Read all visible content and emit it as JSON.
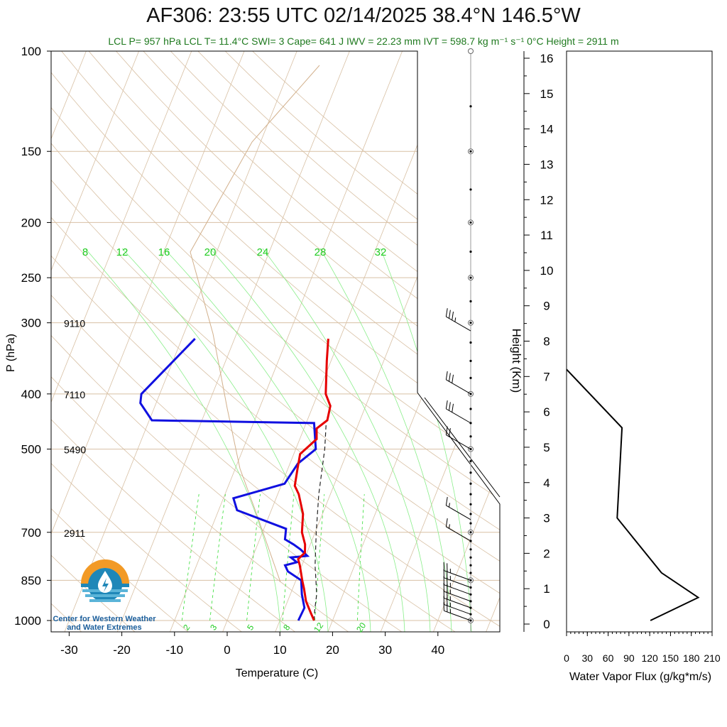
{
  "title": "AF306: 23:55 UTC 02/14/2025  38.4°N 146.5°W",
  "stats_line": "LCL P= 957 hPa  LCL T= 11.4°C  SWI= 3  Cape= 641 J  IWV = 22.23 mm  IVT = 598.7 kg m⁻¹ s⁻¹  0°C Height = 2911 m",
  "organization": {
    "line1": "Center for Western Weather",
    "line2": "and Water Extremes"
  },
  "colors": {
    "temperature": "#e60000",
    "dewpoint": "#1010e0",
    "parcel": "#222222",
    "isotherm": "#d8c0a4",
    "dry_adiabat": "#d8c0a4",
    "mixing_ratio": "#33dd33",
    "moist_adiabat": "#88ee88",
    "stats_text": "#1f7a1f"
  },
  "chart_data": [
    {
      "type": "skew-t",
      "xlabel": "Temperature (C)",
      "ylabel": "P (hPa)",
      "right_axis_label": "Height (Km)",
      "x_ticks": [
        -30,
        -20,
        -10,
        0,
        10,
        20,
        30,
        40
      ],
      "p_ticks": [
        100,
        150,
        200,
        250,
        300,
        400,
        500,
        700,
        850,
        1000
      ],
      "height_ticks": [
        0,
        1,
        2,
        3,
        4,
        5,
        6,
        7,
        8,
        9,
        10,
        11,
        12,
        13,
        14,
        15,
        16
      ],
      "height_annotations": [
        {
          "p": 300,
          "label": "9110"
        },
        {
          "p": 400,
          "label": "7110"
        },
        {
          "p": 500,
          "label": "5490"
        },
        {
          "p": 700,
          "label": "2911"
        }
      ],
      "mixing_ratio_top_labels": [
        "8",
        "12",
        "16",
        "20",
        "24",
        "28",
        "32"
      ],
      "mixing_ratio_bottom_labels": [
        "2",
        "3",
        "5",
        "8",
        "12",
        "20"
      ],
      "temperature_profile": [
        {
          "p": 1000,
          "t": 16.5
        },
        {
          "p": 970,
          "t": 15.3
        },
        {
          "p": 925,
          "t": 13.5
        },
        {
          "p": 880,
          "t": 12.2
        },
        {
          "p": 850,
          "t": 11.2
        },
        {
          "p": 800,
          "t": 9.6
        },
        {
          "p": 780,
          "t": 8.8
        },
        {
          "p": 760,
          "t": 9.6
        },
        {
          "p": 735,
          "t": 9.0
        },
        {
          "p": 700,
          "t": 7.5
        },
        {
          "p": 650,
          "t": 6.3
        },
        {
          "p": 600,
          "t": 4.0
        },
        {
          "p": 580,
          "t": 2.6
        },
        {
          "p": 540,
          "t": 1.8
        },
        {
          "p": 510,
          "t": 1.2
        },
        {
          "p": 480,
          "t": 3.2
        },
        {
          "p": 460,
          "t": 2.4
        },
        {
          "p": 445,
          "t": 3.8
        },
        {
          "p": 420,
          "t": 3.3
        },
        {
          "p": 400,
          "t": 1.5
        },
        {
          "p": 350,
          "t": -0.8
        },
        {
          "p": 320,
          "t": -2.2
        }
      ],
      "dewpoint_profile": [
        {
          "p": 1000,
          "t": 13.5
        },
        {
          "p": 950,
          "t": 13.7
        },
        {
          "p": 900,
          "t": 12.2
        },
        {
          "p": 850,
          "t": 11.0
        },
        {
          "p": 820,
          "t": 7.8
        },
        {
          "p": 800,
          "t": 6.8
        },
        {
          "p": 790,
          "t": 8.8
        },
        {
          "p": 775,
          "t": 7.3
        },
        {
          "p": 770,
          "t": 10.3
        },
        {
          "p": 750,
          "t": 8.5
        },
        {
          "p": 735,
          "t": 6.8
        },
        {
          "p": 720,
          "t": 4.8
        },
        {
          "p": 690,
          "t": 4.2
        },
        {
          "p": 640,
          "t": -6.5
        },
        {
          "p": 610,
          "t": -8.1
        },
        {
          "p": 575,
          "t": 0.5
        },
        {
          "p": 530,
          "t": 1.5
        },
        {
          "p": 500,
          "t": 3.8
        },
        {
          "p": 450,
          "t": 1.5
        },
        {
          "p": 445,
          "t": -29.5
        },
        {
          "p": 415,
          "t": -33.0
        },
        {
          "p": 400,
          "t": -33.5
        },
        {
          "p": 320,
          "t": -27.5
        }
      ],
      "parcel_profile": [
        {
          "p": 1000,
          "t": 16.5
        },
        {
          "p": 957,
          "t": 15.8
        },
        {
          "p": 900,
          "t": 15.0
        },
        {
          "p": 850,
          "t": 13.8
        },
        {
          "p": 800,
          "t": 12.5
        },
        {
          "p": 700,
          "t": 10.2
        },
        {
          "p": 600,
          "t": 7.8
        },
        {
          "p": 500,
          "t": 5.5
        },
        {
          "p": 450,
          "t": 3.8
        }
      ],
      "wind_profile": [
        {
          "p": 1000,
          "speed": 25
        },
        {
          "p": 975,
          "speed": 25
        },
        {
          "p": 950,
          "speed": 25
        },
        {
          "p": 925,
          "speed": 25
        },
        {
          "p": 900,
          "speed": 25
        },
        {
          "p": 875,
          "speed": 25
        },
        {
          "p": 850,
          "speed": 25
        },
        {
          "p": 725,
          "speed": 15
        },
        {
          "p": 665,
          "speed": 15
        },
        {
          "p": 500,
          "speed": 20
        },
        {
          "p": 450,
          "speed": 30
        },
        {
          "p": 400,
          "speed": 30
        },
        {
          "p": 310,
          "speed": 35
        }
      ]
    },
    {
      "type": "line",
      "xlabel": "Water Vapor Flux (g/kg*m/s)",
      "x_ticks": [
        0,
        30,
        60,
        90,
        120,
        150,
        180,
        210
      ],
      "xlim": [
        0,
        210
      ],
      "ylim": [
        0,
        16.3
      ],
      "series": [
        {
          "values": [
            {
              "x": 121,
              "y": 0.1
            },
            {
              "x": 190,
              "y": 0.75
            },
            {
              "x": 137,
              "y": 1.45
            },
            {
              "x": 73,
              "y": 3.0
            },
            {
              "x": 80,
              "y": 5.55
            },
            {
              "x": 0,
              "y": 7.2
            }
          ]
        }
      ]
    }
  ]
}
